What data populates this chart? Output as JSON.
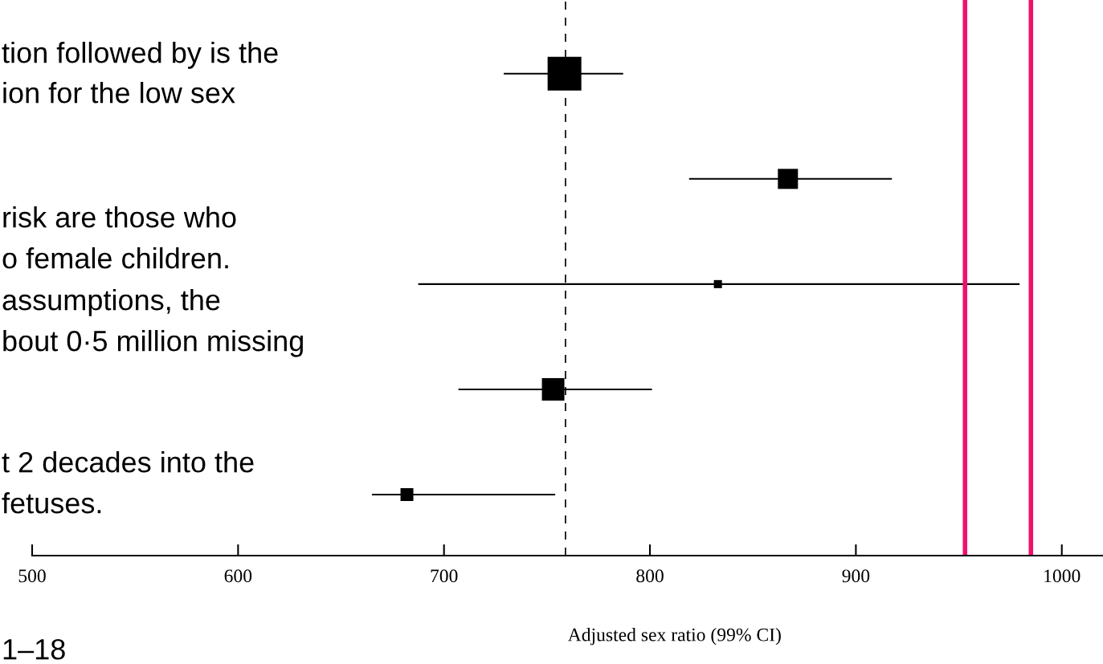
{
  "chart_data": {
    "type": "bubble",
    "orientation": "horizontal",
    "marker": "square",
    "categories": [
      null,
      null,
      null,
      null,
      null
    ],
    "values": [
      758.5,
      867,
      833,
      753,
      682
    ],
    "errors": [
      [
        729,
        787
      ],
      [
        819,
        917.5
      ],
      [
        687.5,
        979.5
      ],
      [
        707,
        801
      ],
      [
        665,
        754
      ]
    ],
    "sizes": [
      1,
      0.354,
      0.057,
      0.444,
      0.145
    ],
    "color": "#000000",
    "xlim": [
      500,
      1020
    ],
    "xticks": [
      500,
      600,
      700,
      800,
      900,
      1000
    ],
    "xlabel": "Adjusted sex ratio (99% CI)",
    "ref_lines": [
      {
        "axis": "x",
        "value": 759,
        "color": "#000000",
        "line_style": "dashed"
      },
      {
        "axis": "x",
        "value": 953,
        "color": "#f0106a",
        "line_style": "solid"
      },
      {
        "axis": "x",
        "value": 985,
        "color": "#f0106a",
        "line_style": "solid"
      }
    ],
    "annotations": [
      "tion followed by is the",
      "ion for the low sex",
      "risk are those who",
      "o female children.",
      "assumptions, the",
      "bout 0·5 million missing",
      "t 2 decades into the",
      "fetuses.",
      "1–18"
    ],
    "tick_labels": "x",
    "grid": false,
    "legend": false
  }
}
